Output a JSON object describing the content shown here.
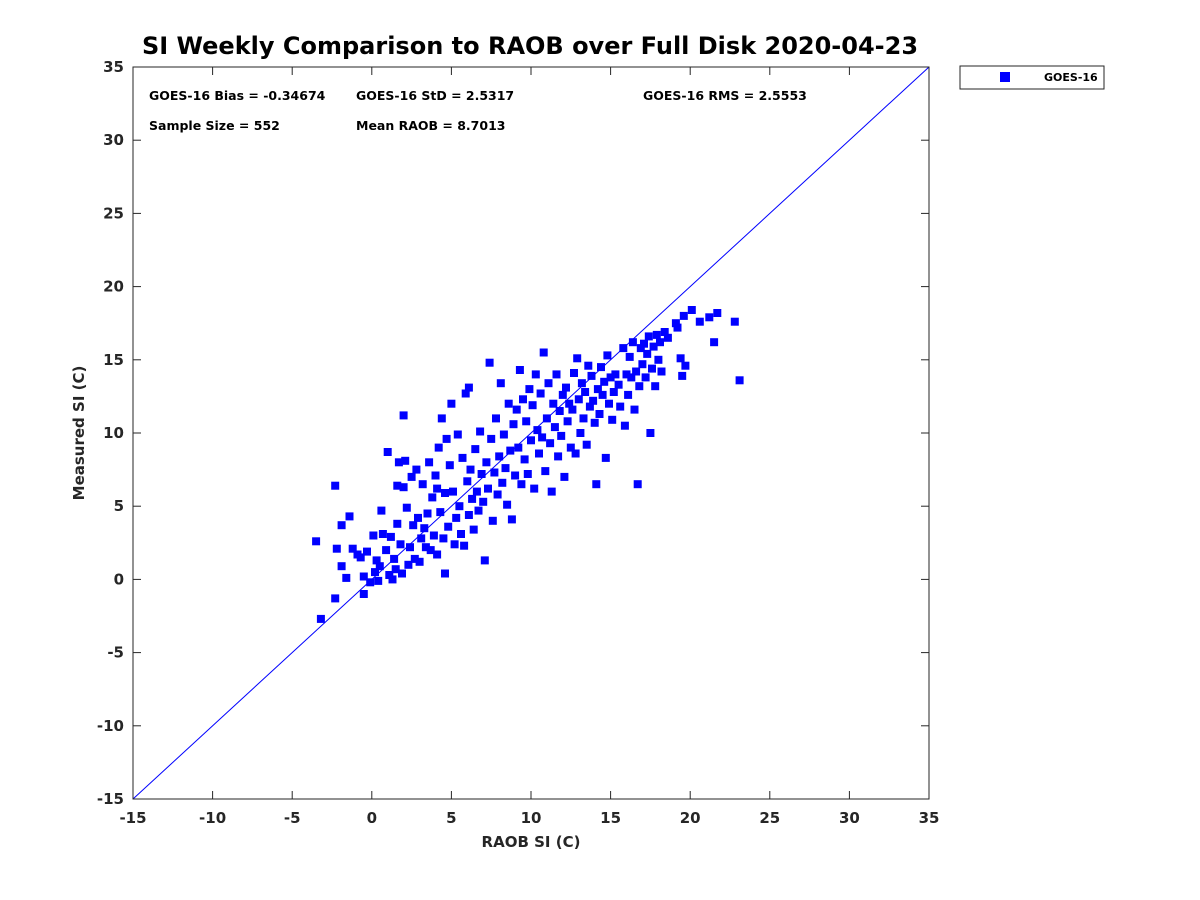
{
  "chart_data": {
    "type": "scatter",
    "title": "SI Weekly Comparison to RAOB over Full Disk 2020-04-23",
    "xlabel": "RAOB SI (C)",
    "ylabel": "Measured SI (C)",
    "xlim": [
      -15,
      35
    ],
    "ylim": [
      -15,
      35
    ],
    "xticks": [
      -15,
      -10,
      -5,
      0,
      5,
      10,
      15,
      20,
      25,
      30,
      35
    ],
    "yticks": [
      -15,
      -10,
      -5,
      0,
      5,
      10,
      15,
      20,
      25,
      30,
      35
    ],
    "grid": false,
    "legend": {
      "position": "outside-top-right",
      "entries": [
        "GOES-16"
      ]
    },
    "reference_line": {
      "name": "1:1 line",
      "from": [
        -15,
        -15
      ],
      "to": [
        35,
        35
      ],
      "color": "#0000ff"
    },
    "stats": {
      "bias": "GOES-16 Bias = -0.34674",
      "std": "GOES-16 StD = 2.5317",
      "rms": "GOES-16 RMS = 2.5553",
      "sample": "Sample Size = 552",
      "mean": "Mean RAOB = 8.7013"
    },
    "series": [
      {
        "name": "GOES-16",
        "color": "#0000ff",
        "marker": "square",
        "points": [
          [
            -3.5,
            2.6
          ],
          [
            -3.2,
            -2.7
          ],
          [
            -2.3,
            6.4
          ],
          [
            -2.3,
            -1.3
          ],
          [
            -2.2,
            2.1
          ],
          [
            -1.9,
            3.7
          ],
          [
            -1.9,
            0.9
          ],
          [
            -1.6,
            0.1
          ],
          [
            -1.4,
            4.3
          ],
          [
            -1.2,
            2.1
          ],
          [
            -0.9,
            1.7
          ],
          [
            -0.7,
            1.5
          ],
          [
            -0.5,
            0.2
          ],
          [
            -0.5,
            -1.0
          ],
          [
            -0.3,
            1.9
          ],
          [
            -0.1,
            -0.2
          ],
          [
            0.1,
            3.0
          ],
          [
            0.2,
            0.5
          ],
          [
            0.3,
            1.3
          ],
          [
            0.4,
            -0.1
          ],
          [
            0.5,
            0.9
          ],
          [
            0.6,
            4.7
          ],
          [
            0.7,
            3.1
          ],
          [
            0.9,
            2.0
          ],
          [
            1.0,
            8.7
          ],
          [
            1.1,
            0.3
          ],
          [
            1.2,
            2.9
          ],
          [
            1.3,
            0.0
          ],
          [
            1.4,
            1.4
          ],
          [
            1.5,
            0.7
          ],
          [
            1.6,
            3.8
          ],
          [
            1.6,
            6.4
          ],
          [
            1.7,
            8.0
          ],
          [
            1.8,
            2.4
          ],
          [
            1.9,
            0.4
          ],
          [
            2.0,
            11.2
          ],
          [
            2.0,
            6.3
          ],
          [
            2.1,
            8.1
          ],
          [
            2.2,
            4.9
          ],
          [
            2.3,
            1.0
          ],
          [
            2.4,
            2.2
          ],
          [
            2.5,
            7.0
          ],
          [
            2.6,
            3.7
          ],
          [
            2.7,
            1.4
          ],
          [
            2.8,
            7.5
          ],
          [
            2.9,
            4.2
          ],
          [
            3.0,
            1.2
          ],
          [
            3.1,
            2.8
          ],
          [
            3.2,
            6.5
          ],
          [
            3.3,
            3.5
          ],
          [
            3.4,
            2.2
          ],
          [
            3.5,
            4.5
          ],
          [
            3.6,
            8.0
          ],
          [
            3.7,
            2.0
          ],
          [
            3.8,
            5.6
          ],
          [
            3.9,
            3.0
          ],
          [
            4.0,
            7.1
          ],
          [
            4.1,
            6.2
          ],
          [
            4.1,
            1.7
          ],
          [
            4.2,
            9.0
          ],
          [
            4.3,
            4.6
          ],
          [
            4.4,
            11.0
          ],
          [
            4.5,
            2.8
          ],
          [
            4.6,
            5.9
          ],
          [
            4.6,
            0.4
          ],
          [
            4.7,
            9.6
          ],
          [
            4.8,
            3.6
          ],
          [
            4.9,
            7.8
          ],
          [
            5.0,
            12.0
          ],
          [
            5.1,
            6.0
          ],
          [
            5.2,
            2.4
          ],
          [
            5.3,
            4.2
          ],
          [
            5.4,
            9.9
          ],
          [
            5.5,
            5.0
          ],
          [
            5.6,
            3.1
          ],
          [
            5.7,
            8.3
          ],
          [
            5.8,
            2.3
          ],
          [
            5.9,
            12.7
          ],
          [
            6.0,
            6.7
          ],
          [
            6.1,
            4.4
          ],
          [
            6.1,
            13.1
          ],
          [
            6.2,
            7.5
          ],
          [
            6.3,
            5.5
          ],
          [
            6.4,
            3.4
          ],
          [
            6.5,
            8.9
          ],
          [
            6.6,
            6.0
          ],
          [
            6.7,
            4.7
          ],
          [
            6.8,
            10.1
          ],
          [
            6.9,
            7.2
          ],
          [
            7.0,
            5.3
          ],
          [
            7.1,
            1.3
          ],
          [
            7.2,
            8.0
          ],
          [
            7.3,
            6.2
          ],
          [
            7.4,
            14.8
          ],
          [
            7.5,
            9.6
          ],
          [
            7.6,
            4.0
          ],
          [
            7.7,
            7.3
          ],
          [
            7.8,
            11.0
          ],
          [
            7.9,
            5.8
          ],
          [
            8.0,
            8.4
          ],
          [
            8.1,
            13.4
          ],
          [
            8.2,
            6.6
          ],
          [
            8.3,
            9.9
          ],
          [
            8.4,
            7.6
          ],
          [
            8.5,
            5.1
          ],
          [
            8.6,
            12.0
          ],
          [
            8.7,
            8.8
          ],
          [
            8.8,
            4.1
          ],
          [
            8.9,
            10.6
          ],
          [
            9.0,
            7.1
          ],
          [
            9.1,
            11.6
          ],
          [
            9.2,
            9.0
          ],
          [
            9.3,
            14.3
          ],
          [
            9.4,
            6.5
          ],
          [
            9.5,
            12.3
          ],
          [
            9.6,
            8.2
          ],
          [
            9.7,
            10.8
          ],
          [
            9.8,
            7.2
          ],
          [
            9.9,
            13.0
          ],
          [
            10.0,
            9.5
          ],
          [
            10.1,
            11.9
          ],
          [
            10.2,
            6.2
          ],
          [
            10.3,
            14.0
          ],
          [
            10.4,
            10.2
          ],
          [
            10.5,
            8.6
          ],
          [
            10.6,
            12.7
          ],
          [
            10.7,
            9.7
          ],
          [
            10.8,
            15.5
          ],
          [
            10.9,
            7.4
          ],
          [
            11.0,
            11.0
          ],
          [
            11.1,
            13.4
          ],
          [
            11.2,
            9.3
          ],
          [
            11.3,
            6.0
          ],
          [
            11.4,
            12.0
          ],
          [
            11.5,
            10.4
          ],
          [
            11.6,
            14.0
          ],
          [
            11.7,
            8.4
          ],
          [
            11.8,
            11.5
          ],
          [
            11.9,
            9.8
          ],
          [
            12.0,
            12.6
          ],
          [
            12.1,
            7.0
          ],
          [
            12.2,
            13.1
          ],
          [
            12.3,
            10.8
          ],
          [
            12.4,
            12.0
          ],
          [
            12.5,
            9.0
          ],
          [
            12.6,
            11.6
          ],
          [
            12.7,
            14.1
          ],
          [
            12.8,
            8.6
          ],
          [
            12.9,
            15.1
          ],
          [
            13.0,
            12.3
          ],
          [
            13.1,
            10.0
          ],
          [
            13.2,
            13.4
          ],
          [
            13.3,
            11.0
          ],
          [
            13.4,
            12.8
          ],
          [
            13.5,
            9.2
          ],
          [
            13.6,
            14.6
          ],
          [
            13.7,
            11.8
          ],
          [
            13.8,
            13.9
          ],
          [
            13.9,
            12.2
          ],
          [
            14.0,
            10.7
          ],
          [
            14.1,
            6.5
          ],
          [
            14.2,
            13.0
          ],
          [
            14.3,
            11.3
          ],
          [
            14.4,
            14.5
          ],
          [
            14.5,
            12.6
          ],
          [
            14.6,
            13.5
          ],
          [
            14.7,
            8.3
          ],
          [
            14.8,
            15.3
          ],
          [
            14.9,
            12.0
          ],
          [
            15.0,
            13.8
          ],
          [
            15.1,
            10.9
          ],
          [
            15.2,
            12.8
          ],
          [
            15.3,
            14.0
          ],
          [
            15.5,
            13.3
          ],
          [
            15.6,
            11.8
          ],
          [
            15.8,
            15.8
          ],
          [
            15.9,
            10.5
          ],
          [
            16.0,
            14.0
          ],
          [
            16.1,
            12.6
          ],
          [
            16.2,
            15.2
          ],
          [
            16.3,
            13.8
          ],
          [
            16.4,
            16.2
          ],
          [
            16.5,
            11.6
          ],
          [
            16.6,
            14.2
          ],
          [
            16.7,
            6.5
          ],
          [
            16.8,
            13.2
          ],
          [
            16.9,
            15.8
          ],
          [
            17.0,
            14.7
          ],
          [
            17.1,
            16.1
          ],
          [
            17.2,
            13.8
          ],
          [
            17.3,
            15.4
          ],
          [
            17.4,
            16.6
          ],
          [
            17.5,
            10.0
          ],
          [
            17.6,
            14.4
          ],
          [
            17.7,
            15.9
          ],
          [
            17.8,
            13.2
          ],
          [
            17.9,
            16.7
          ],
          [
            18.0,
            15.0
          ],
          [
            18.1,
            16.2
          ],
          [
            18.2,
            14.2
          ],
          [
            18.4,
            16.9
          ],
          [
            18.6,
            16.5
          ],
          [
            19.1,
            17.5
          ],
          [
            19.2,
            17.2
          ],
          [
            19.4,
            15.1
          ],
          [
            19.5,
            13.9
          ],
          [
            19.6,
            18.0
          ],
          [
            19.7,
            14.6
          ],
          [
            20.1,
            18.4
          ],
          [
            20.6,
            17.6
          ],
          [
            21.2,
            17.9
          ],
          [
            21.5,
            16.2
          ],
          [
            21.7,
            18.2
          ],
          [
            22.8,
            17.6
          ],
          [
            23.1,
            13.6
          ]
        ]
      }
    ]
  }
}
